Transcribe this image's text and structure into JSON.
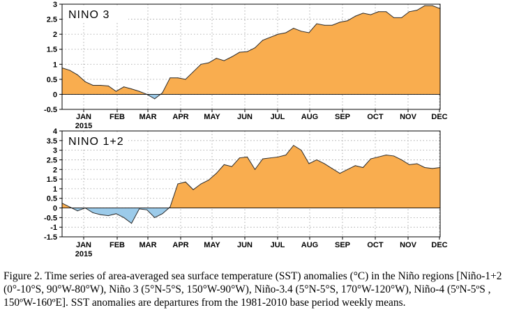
{
  "colors": {
    "positive": "#f9ad4f",
    "negative": "#9ccbea",
    "line": "#2a2a2a",
    "frame": "#000000",
    "grid": "#9a9a9a"
  },
  "year_label": "2015",
  "chart_data": [
    {
      "type": "area",
      "title": "NINO 3",
      "xlabel": "",
      "ylabel": "",
      "x_tick_labels": [
        "JAN",
        "FEB",
        "MAR",
        "APR",
        "MAY",
        "JUN",
        "JUL",
        "AUG",
        "SEP",
        "OCT",
        "NOV",
        "DEC"
      ],
      "ylim": [
        -0.5,
        3
      ],
      "y_ticks": [
        -0.5,
        0,
        0.5,
        1,
        1.5,
        2,
        2.5,
        3
      ],
      "y_tick_labels": [
        "-0.5",
        "0",
        "0.5",
        "1",
        "1.5",
        "2",
        "2.5",
        "3"
      ],
      "grid": true,
      "x_unit": "week index (week 0 = last week of Dec 2014)",
      "x": [
        0,
        1,
        2,
        3,
        4,
        5,
        6,
        7,
        8,
        9,
        10,
        11,
        12,
        13,
        14,
        15,
        16,
        17,
        18,
        19,
        20,
        21,
        22,
        23,
        24,
        25,
        26,
        27,
        28,
        29,
        30,
        31,
        32,
        33,
        34,
        35,
        36,
        37,
        38,
        39,
        40,
        41,
        42,
        43,
        44,
        45,
        46,
        47,
        48,
        49
      ],
      "values": [
        0.88,
        0.8,
        0.65,
        0.42,
        0.3,
        0.3,
        0.28,
        0.1,
        0.25,
        0.18,
        0.1,
        0.0,
        -0.15,
        0.05,
        0.55,
        0.55,
        0.5,
        0.75,
        1.0,
        1.05,
        1.2,
        1.12,
        1.25,
        1.4,
        1.42,
        1.55,
        1.8,
        1.9,
        2.0,
        2.05,
        2.2,
        2.1,
        2.05,
        2.35,
        2.3,
        2.3,
        2.4,
        2.45,
        2.6,
        2.7,
        2.65,
        2.75,
        2.75,
        2.55,
        2.55,
        2.75,
        2.8,
        2.95,
        2.95,
        2.85
      ]
    },
    {
      "type": "area",
      "title": "NINO 1+2",
      "xlabel": "",
      "ylabel": "",
      "x_tick_labels": [
        "JAN",
        "FEB",
        "MAR",
        "APR",
        "MAY",
        "JUN",
        "JUL",
        "AUG",
        "SEP",
        "OCT",
        "NOV",
        "DEC"
      ],
      "ylim": [
        -1.5,
        4
      ],
      "y_ticks": [
        -1.5,
        -1,
        -0.5,
        0,
        0.5,
        1,
        1.5,
        2,
        2.5,
        3,
        3.5,
        4
      ],
      "y_tick_labels": [
        "-1.5",
        "-1",
        "-0.5",
        "0",
        "0.5",
        "1",
        "1.5",
        "2",
        "2.5",
        "3",
        "3.5",
        "4"
      ],
      "grid": true,
      "x_unit": "week index (week 0 = last week of Dec 2014)",
      "x": [
        0,
        1,
        2,
        3,
        4,
        5,
        6,
        7,
        8,
        9,
        10,
        11,
        12,
        13,
        14,
        15,
        16,
        17,
        18,
        19,
        20,
        21,
        22,
        23,
        24,
        25,
        26,
        27,
        28,
        29,
        30,
        31,
        32,
        33,
        34,
        35,
        36,
        37,
        38,
        39,
        40,
        41,
        42,
        43,
        44,
        45,
        46,
        47,
        48,
        49
      ],
      "values": [
        0.25,
        0.05,
        -0.15,
        0.0,
        -0.25,
        -0.35,
        -0.4,
        -0.3,
        -0.5,
        -0.8,
        -0.05,
        -0.1,
        -0.5,
        -0.3,
        0.05,
        1.25,
        1.35,
        0.95,
        1.25,
        1.45,
        1.8,
        2.25,
        2.15,
        2.6,
        2.65,
        2.0,
        2.55,
        2.6,
        2.65,
        2.75,
        3.25,
        3.0,
        2.3,
        2.5,
        2.3,
        2.05,
        1.8,
        2.0,
        2.2,
        2.1,
        2.55,
        2.65,
        2.75,
        2.7,
        2.5,
        2.25,
        2.3,
        2.1,
        2.05,
        2.1
      ]
    }
  ],
  "caption": {
    "text": "Figure 2. Time series of area-averaged sea surface temperature (SST) anomalies (°C) in the Niño regions [Niño-1+2 (0°-10°S, 90°W-80°W), Niño 3 (5°N-5°S, 150°W-90°W), Niño-3.4 (5°N-5°S, 170°W-120°W), Niño-4 (5ºN-5ºS , 150ºW-160ºE]. SST anomalies are departures from the 1981-2010 base period weekly means."
  }
}
